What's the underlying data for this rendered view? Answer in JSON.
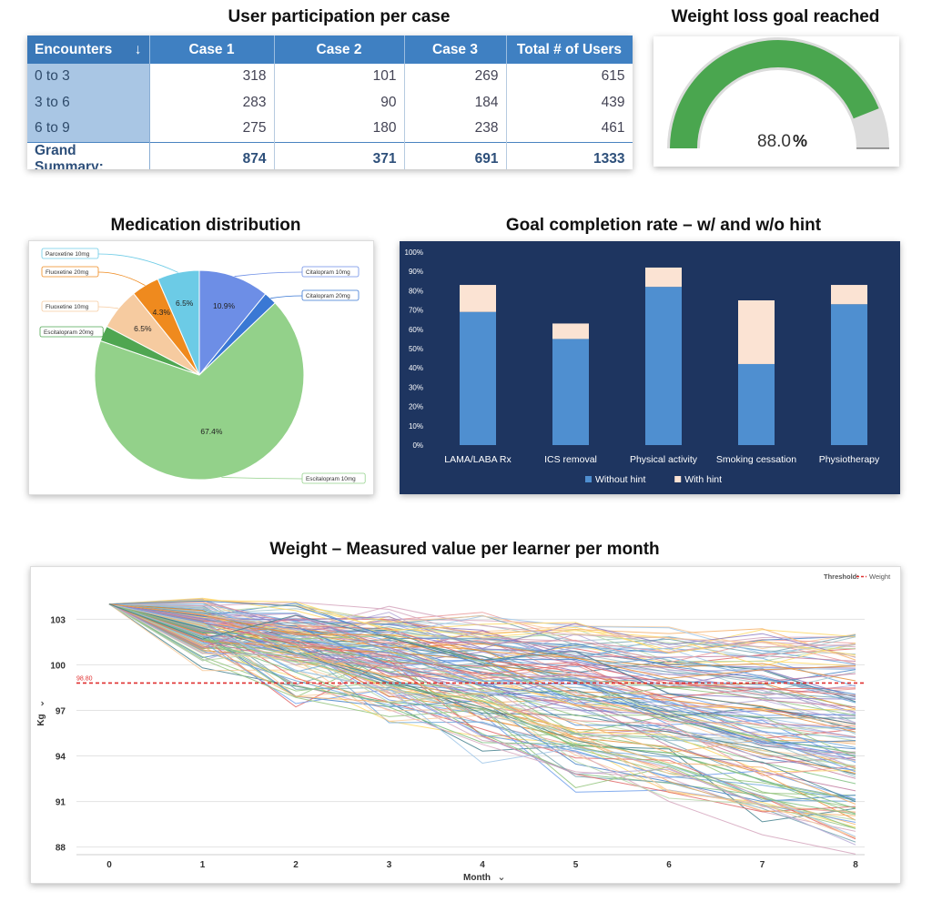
{
  "titles": {
    "table": "User participation per case",
    "gauge": "Weight loss goal reached",
    "pie": "Medication distribution",
    "bar": "Goal completion rate – w/ and w/o hint",
    "line": "Weight – Measured value per learner per month"
  },
  "table": {
    "headers": [
      "Encounters",
      "Case 1",
      "Case 2",
      "Case 3",
      "Total # of Users"
    ],
    "sort_icon": "arrow-down-icon",
    "rows": [
      {
        "label": "0 to 3",
        "values": [
          "318",
          "101",
          "269",
          "615"
        ]
      },
      {
        "label": "3 to 6",
        "values": [
          "283",
          "90",
          "184",
          "439"
        ]
      },
      {
        "label": "6 to 9",
        "values": [
          "275",
          "180",
          "238",
          "461"
        ]
      }
    ],
    "summary": {
      "label": "Grand Summary:",
      "values": [
        "874",
        "371",
        "691",
        "1333"
      ]
    }
  },
  "gauge": {
    "value_text": "88.0",
    "unit": "%",
    "value": 88.0,
    "max": 100,
    "fill_color": "#4aa64f",
    "track_color": "#dcdcdc"
  },
  "chart_data": [
    {
      "type": "pie",
      "title": "Medication distribution",
      "slices": [
        {
          "name": "Citalopram 10mg",
          "value": 10.9,
          "label": "10.9%",
          "color": "#6d8ee6"
        },
        {
          "name": "Citalopram 20mg",
          "value": 2.0,
          "label": "",
          "color": "#3a78d4"
        },
        {
          "name": "Escitalopram 10mg",
          "value": 67.4,
          "label": "67.4%",
          "color": "#93d18a"
        },
        {
          "name": "Escitalopram 20mg",
          "value": 2.4,
          "label": "",
          "color": "#4fa651"
        },
        {
          "name": "Fluoxetine 10mg",
          "value": 6.5,
          "label": "6.5%",
          "color": "#f6cba0"
        },
        {
          "name": "Fluoxetine 20mg",
          "value": 4.3,
          "label": "4.3%",
          "color": "#ef8a1e"
        },
        {
          "name": "Paroxetine 10mg",
          "value": 6.5,
          "label": "6.5%",
          "color": "#6ccbe6"
        }
      ]
    },
    {
      "type": "bar",
      "stacked": true,
      "title": "Goal completion rate – w/ and w/o hint",
      "categories": [
        "LAMA/LABA Rx",
        "ICS removal",
        "Physical activity",
        "Smoking cessation",
        "Physiotherapy"
      ],
      "series": [
        {
          "name": "Without hint",
          "values": [
            69,
            55,
            82,
            42,
            73
          ],
          "color": "#4f8fd0"
        },
        {
          "name": "With hint",
          "values": [
            14,
            8,
            10,
            33,
            10
          ],
          "color": "#fbe3d3"
        }
      ],
      "yticks": [
        "0%",
        "10%",
        "20%",
        "30%",
        "40%",
        "50%",
        "60%",
        "70%",
        "80%",
        "90%",
        "100%"
      ],
      "ylim": [
        0,
        100
      ],
      "legend": "bottom"
    },
    {
      "type": "line",
      "title": "Weight – Measured value per learner per month",
      "xlabel": "Month",
      "ylabel": "Kg",
      "x": [
        0,
        1,
        2,
        3,
        4,
        5,
        6,
        7,
        8
      ],
      "xticks": [
        "0",
        "1",
        "2",
        "3",
        "4",
        "5",
        "6",
        "7",
        "8"
      ],
      "yticks": [
        "88",
        "91",
        "94",
        "97",
        "100",
        "103"
      ],
      "ylim": [
        87.5,
        105
      ],
      "threshold": {
        "value": 98.8,
        "label": "98.80",
        "legend_title": "Threshold:",
        "legend_name": "Weight",
        "color": "#e03030"
      },
      "series_count": 140,
      "start_value": 104.0,
      "end_range": [
        88.2,
        101.7
      ],
      "palette": [
        "#6fa8dc",
        "#93c47d",
        "#f6b26b",
        "#8e7cc3",
        "#76a5af",
        "#c27ba0",
        "#e06666",
        "#ffd966",
        "#6d9eeb",
        "#b6d7a8",
        "#a2c4c9",
        "#d5a6bd",
        "#f9cb9c",
        "#9fc5e8",
        "#b4a7d6",
        "#ea9999",
        "#7fbf7f",
        "#4a86c8",
        "#e69138",
        "#45818e"
      ]
    }
  ]
}
